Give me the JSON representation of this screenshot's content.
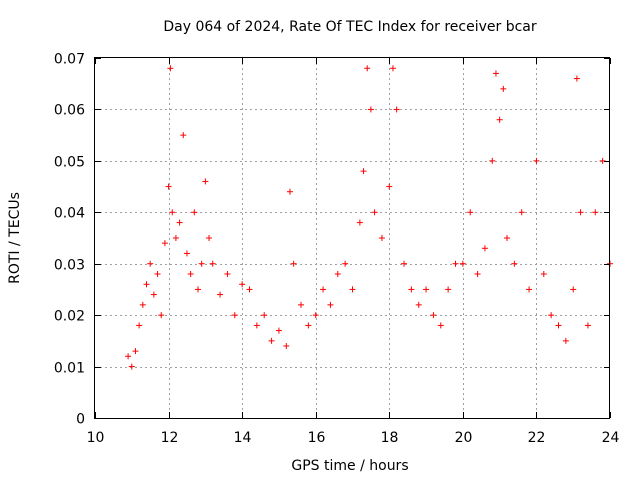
{
  "chart_data": {
    "type": "scatter",
    "title": "Day 064 of 2024, Rate Of TEC Index for receiver bcar",
    "xlabel": "GPS time / hours",
    "ylabel": "ROTI / TECUs",
    "xlim": [
      10,
      24
    ],
    "ylim": [
      0,
      0.07
    ],
    "grid": true,
    "marker": "plus",
    "color": "#ff0000",
    "x_ticks": [
      10,
      12,
      14,
      16,
      18,
      20,
      22,
      24
    ],
    "y_ticks": [
      0,
      0.01,
      0.02,
      0.03,
      0.04,
      0.05,
      0.06,
      0.07
    ],
    "y_tick_labels": [
      "0",
      "0.01",
      "0.02",
      "0.03",
      "0.04",
      "0.05",
      "0.06",
      "0.07"
    ],
    "series": [
      {
        "name": "ROTI",
        "x": [
          10.9,
          11.0,
          11.1,
          11.2,
          11.3,
          11.4,
          11.5,
          11.6,
          11.7,
          11.8,
          11.9,
          12.0,
          12.05,
          12.1,
          12.2,
          12.3,
          12.4,
          12.5,
          12.6,
          12.7,
          12.8,
          12.9,
          13.0,
          13.1,
          13.2,
          13.4,
          13.6,
          13.8,
          14.0,
          14.2,
          14.4,
          14.6,
          14.8,
          15.0,
          15.2,
          15.3,
          15.4,
          15.6,
          15.8,
          16.0,
          16.2,
          16.4,
          16.6,
          16.8,
          17.0,
          17.2,
          17.3,
          17.4,
          17.5,
          17.6,
          17.8,
          18.0,
          18.1,
          18.2,
          18.4,
          18.6,
          18.8,
          19.0,
          19.2,
          19.4,
          19.6,
          19.8,
          20.0,
          20.2,
          20.4,
          20.6,
          20.8,
          20.9,
          21.0,
          21.1,
          21.2,
          21.4,
          21.6,
          21.8,
          22.0,
          22.2,
          22.4,
          22.6,
          22.8,
          23.0,
          23.1,
          23.2,
          23.4,
          23.6,
          23.8,
          24.0
        ],
        "y": [
          0.012,
          0.01,
          0.013,
          0.018,
          0.022,
          0.026,
          0.03,
          0.024,
          0.028,
          0.02,
          0.034,
          0.045,
          0.068,
          0.04,
          0.035,
          0.038,
          0.055,
          0.032,
          0.028,
          0.04,
          0.025,
          0.03,
          0.046,
          0.035,
          0.03,
          0.024,
          0.028,
          0.02,
          0.026,
          0.025,
          0.018,
          0.02,
          0.015,
          0.017,
          0.014,
          0.044,
          0.03,
          0.022,
          0.018,
          0.02,
          0.025,
          0.022,
          0.028,
          0.03,
          0.025,
          0.038,
          0.048,
          0.068,
          0.06,
          0.04,
          0.035,
          0.045,
          0.068,
          0.06,
          0.03,
          0.025,
          0.022,
          0.025,
          0.02,
          0.018,
          0.025,
          0.03,
          0.03,
          0.04,
          0.028,
          0.033,
          0.05,
          0.067,
          0.058,
          0.064,
          0.035,
          0.03,
          0.04,
          0.025,
          0.05,
          0.028,
          0.02,
          0.018,
          0.015,
          0.025,
          0.066,
          0.04,
          0.018,
          0.04,
          0.05,
          0.03
        ]
      }
    ]
  }
}
